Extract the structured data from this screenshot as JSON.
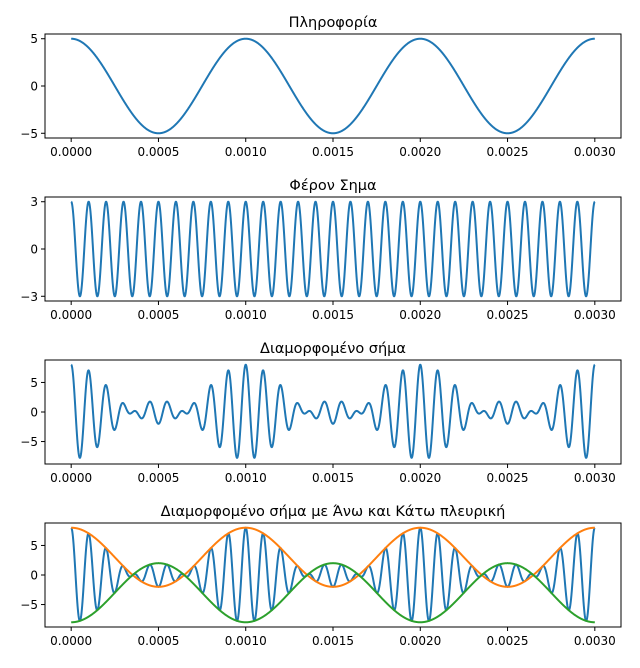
{
  "chart_data": [
    {
      "type": "line",
      "title": "Πληροφορία",
      "xlabel": "",
      "ylabel": "",
      "xlim": [
        -0.00015,
        0.00315
      ],
      "ylim": [
        -5.5,
        5.5
      ],
      "x_ticks": [
        0,
        0.0005,
        0.001,
        0.0015,
        0.002,
        0.0025,
        0.003
      ],
      "x_tick_labels": [
        "0.0000",
        "0.0005",
        "0.0010",
        "0.0015",
        "0.0020",
        "0.0025",
        "0.0030"
      ],
      "y_ticks": [
        -5,
        0,
        5
      ],
      "y_tick_labels": [
        "−5",
        "0",
        "5"
      ],
      "grid": false,
      "series": [
        {
          "color": "#1f77b4",
          "function": "5*cos(2*pi*1000*t)",
          "x_range": [
            0,
            0.003
          ]
        }
      ]
    },
    {
      "type": "line",
      "title": "Φέρον Σημα",
      "xlabel": "",
      "ylabel": "",
      "xlim": [
        -0.00015,
        0.00315
      ],
      "ylim": [
        -3.3,
        3.3
      ],
      "x_ticks": [
        0,
        0.0005,
        0.001,
        0.0015,
        0.002,
        0.0025,
        0.003
      ],
      "x_tick_labels": [
        "0.0000",
        "0.0005",
        "0.0010",
        "0.0015",
        "0.0020",
        "0.0025",
        "0.0030"
      ],
      "y_ticks": [
        -3,
        0,
        3
      ],
      "y_tick_labels": [
        "−3",
        "0",
        "3"
      ],
      "grid": false,
      "series": [
        {
          "color": "#1f77b4",
          "function": "3*cos(2*pi*10000*t)",
          "x_range": [
            0,
            0.003
          ]
        }
      ]
    },
    {
      "type": "line",
      "title": "Διαμορφομένο σήμα",
      "xlabel": "",
      "ylabel": "",
      "xlim": [
        -0.00015,
        0.00315
      ],
      "ylim": [
        -8.8,
        8.8
      ],
      "x_ticks": [
        0,
        0.0005,
        0.001,
        0.0015,
        0.002,
        0.0025,
        0.003
      ],
      "x_tick_labels": [
        "0.0000",
        "0.0005",
        "0.0010",
        "0.0015",
        "0.0020",
        "0.0025",
        "0.0030"
      ],
      "y_ticks": [
        -5,
        0,
        5
      ],
      "y_tick_labels": [
        "−5",
        "0",
        "5"
      ],
      "grid": false,
      "series": [
        {
          "color": "#1f77b4",
          "function": "(3+5*cos(2*pi*1000*t))*cos(2*pi*10000*t)",
          "x_range": [
            0,
            0.003
          ]
        }
      ]
    },
    {
      "type": "line",
      "title": "Διαμορφομένο σήμα με Άνω και Κάτω πλευρική",
      "xlabel": "",
      "ylabel": "",
      "xlim": [
        -0.00015,
        0.00315
      ],
      "ylim": [
        -8.8,
        8.8
      ],
      "x_ticks": [
        0,
        0.0005,
        0.001,
        0.0015,
        0.002,
        0.0025,
        0.003
      ],
      "x_tick_labels": [
        "0.0000",
        "0.0005",
        "0.0010",
        "0.0015",
        "0.0020",
        "0.0025",
        "0.0030"
      ],
      "y_ticks": [
        -5,
        0,
        5
      ],
      "y_tick_labels": [
        "−5",
        "0",
        "5"
      ],
      "grid": false,
      "series": [
        {
          "color": "#1f77b4",
          "function": "(3+5*cos(2*pi*1000*t))*cos(2*pi*10000*t)",
          "x_range": [
            0,
            0.003
          ]
        },
        {
          "color": "#ff7f0e",
          "function": "3+5*cos(2*pi*1000*t)",
          "x_range": [
            0,
            0.003
          ]
        },
        {
          "color": "#2ca02c",
          "function": "-(3+5*cos(2*pi*1000*t))",
          "x_range": [
            0,
            0.003
          ]
        }
      ]
    }
  ]
}
